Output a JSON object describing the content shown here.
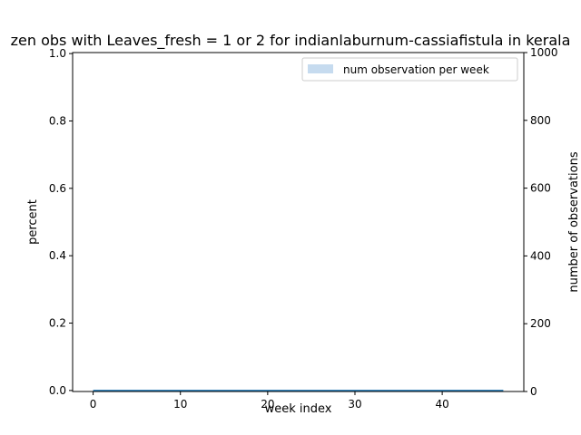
{
  "chart_data": {
    "type": "line",
    "title": "zen obs with Leaves_fresh = 1 or 2 for indianlaburnum-cassiafistula in kerala",
    "xlabel": "week index",
    "ylabel": "percent",
    "y2label": "number of observations",
    "xlim": [
      -2.35,
      49.35
    ],
    "ylim": [
      -0.003,
      1.003
    ],
    "y2lim": [
      0,
      1000
    ],
    "xticks": [
      "0",
      "10",
      "20",
      "30",
      "40"
    ],
    "yticks": [
      "0.0",
      "0.2",
      "0.4",
      "0.6",
      "0.8",
      "1.0"
    ],
    "y2ticks": [
      "0",
      "200",
      "400",
      "600",
      "800",
      "1000"
    ],
    "legend": {
      "position": "top-right",
      "entries": [
        "num observation per week"
      ]
    },
    "grid": false,
    "series": [
      {
        "kind": "line",
        "axis": "left",
        "color": "#1f77b4",
        "x": [
          0,
          1,
          2,
          3,
          4,
          5,
          6,
          7,
          8,
          9,
          10,
          11,
          12,
          13,
          14,
          15,
          16,
          17,
          18,
          19,
          20,
          21,
          22,
          23,
          24,
          25,
          26,
          27,
          28,
          29,
          30,
          31,
          32,
          33,
          34,
          35,
          36,
          37,
          38,
          39,
          40,
          41,
          42,
          43,
          44,
          45,
          46,
          47
        ],
        "values": [
          0,
          0,
          0,
          0,
          0,
          0,
          0,
          0,
          0,
          0,
          0,
          0,
          0,
          0,
          0,
          0,
          0,
          0,
          0,
          0,
          0,
          0,
          0,
          0,
          0,
          0,
          0,
          0,
          0,
          0,
          0,
          0,
          0,
          0,
          0,
          0,
          0,
          0,
          0,
          0,
          0,
          0,
          0,
          0,
          0,
          0,
          0,
          0
        ]
      },
      {
        "name": "num observation per week",
        "kind": "bar",
        "axis": "right",
        "color": "#c6dbef",
        "x": [
          0,
          1,
          2,
          3,
          4,
          5,
          6,
          7,
          8,
          9,
          10,
          11,
          12,
          13,
          14,
          15,
          16,
          17,
          18,
          19,
          20,
          21,
          22,
          23,
          24,
          25,
          26,
          27,
          28,
          29,
          30,
          31,
          32,
          33,
          34,
          35,
          36,
          37,
          38,
          39,
          40,
          41,
          42,
          43,
          44,
          45,
          46,
          47
        ],
        "values": [
          0,
          0,
          0,
          0,
          0,
          0,
          0,
          0,
          0,
          0,
          0,
          0,
          0,
          0,
          0,
          0,
          0,
          0,
          0,
          0,
          0,
          0,
          0,
          0,
          0,
          0,
          0,
          0,
          0,
          0,
          0,
          0,
          0,
          0,
          0,
          0,
          0,
          0,
          0,
          0,
          0,
          0,
          0,
          0,
          0,
          0,
          0,
          0
        ]
      }
    ]
  }
}
